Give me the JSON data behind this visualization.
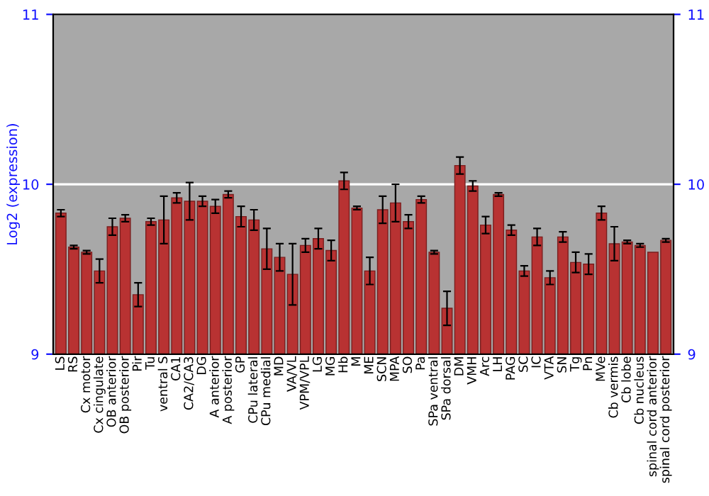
{
  "chart_data": {
    "type": "bar",
    "ylabel": "Log2 (expression)",
    "categories": [
      "LS",
      "RS",
      "Cx motor",
      "Cx cingulate",
      "OB anterior",
      "OB posterior",
      "Pir",
      "Tu",
      "ventral S",
      "CA1",
      "CA2/CA3",
      "DG",
      "A anterior",
      "A posterior",
      "GP",
      "CPu lateral",
      "CPu medial",
      "MD",
      "VA/VL",
      "VPM/VPL",
      "LG",
      "MG",
      "Hb",
      "M",
      "ME",
      "SCN",
      "MPA",
      "SO",
      "Pa",
      "SPa ventral",
      "SPa dorsal",
      "DM",
      "VMH",
      "Arc",
      "LH",
      "PAG",
      "SC",
      "IC",
      "VTA",
      "SN",
      "Tg",
      "Pn",
      "MVe",
      "Cb vermis",
      "Cb lobe",
      "Cb nucleus",
      "spinal cord anterior",
      "spinal cord posterior"
    ],
    "values": [
      9.83,
      9.63,
      9.6,
      9.49,
      9.75,
      9.8,
      9.35,
      9.78,
      9.79,
      9.92,
      9.9,
      9.9,
      9.87,
      9.94,
      9.81,
      9.79,
      9.62,
      9.57,
      9.47,
      9.64,
      9.68,
      9.61,
      10.02,
      9.86,
      9.49,
      9.85,
      9.89,
      9.78,
      9.91,
      9.6,
      9.27,
      10.11,
      9.99,
      9.76,
      9.94,
      9.73,
      9.49,
      9.69,
      9.45,
      9.69,
      9.54,
      9.53,
      9.83,
      9.65,
      9.66,
      9.64,
      9.6,
      9.67
    ],
    "errors": [
      0.02,
      0.01,
      0.01,
      0.07,
      0.05,
      0.02,
      0.07,
      0.02,
      0.14,
      0.03,
      0.11,
      0.03,
      0.04,
      0.02,
      0.06,
      0.06,
      0.12,
      0.08,
      0.18,
      0.04,
      0.06,
      0.06,
      0.05,
      0.01,
      0.08,
      0.08,
      0.11,
      0.04,
      0.02,
      0.01,
      0.1,
      0.05,
      0.03,
      0.05,
      0.01,
      0.03,
      0.03,
      0.05,
      0.04,
      0.03,
      0.06,
      0.06,
      0.04,
      0.1,
      0.01,
      0.01,
      null,
      0.01
    ],
    "color": "#b83232",
    "ylim": [
      9,
      11
    ],
    "yticks": [
      9,
      10,
      11
    ],
    "y2lim": [
      9,
      11
    ],
    "y2ticks": [
      9,
      10,
      11
    ],
    "grid": "y",
    "legend": false
  }
}
